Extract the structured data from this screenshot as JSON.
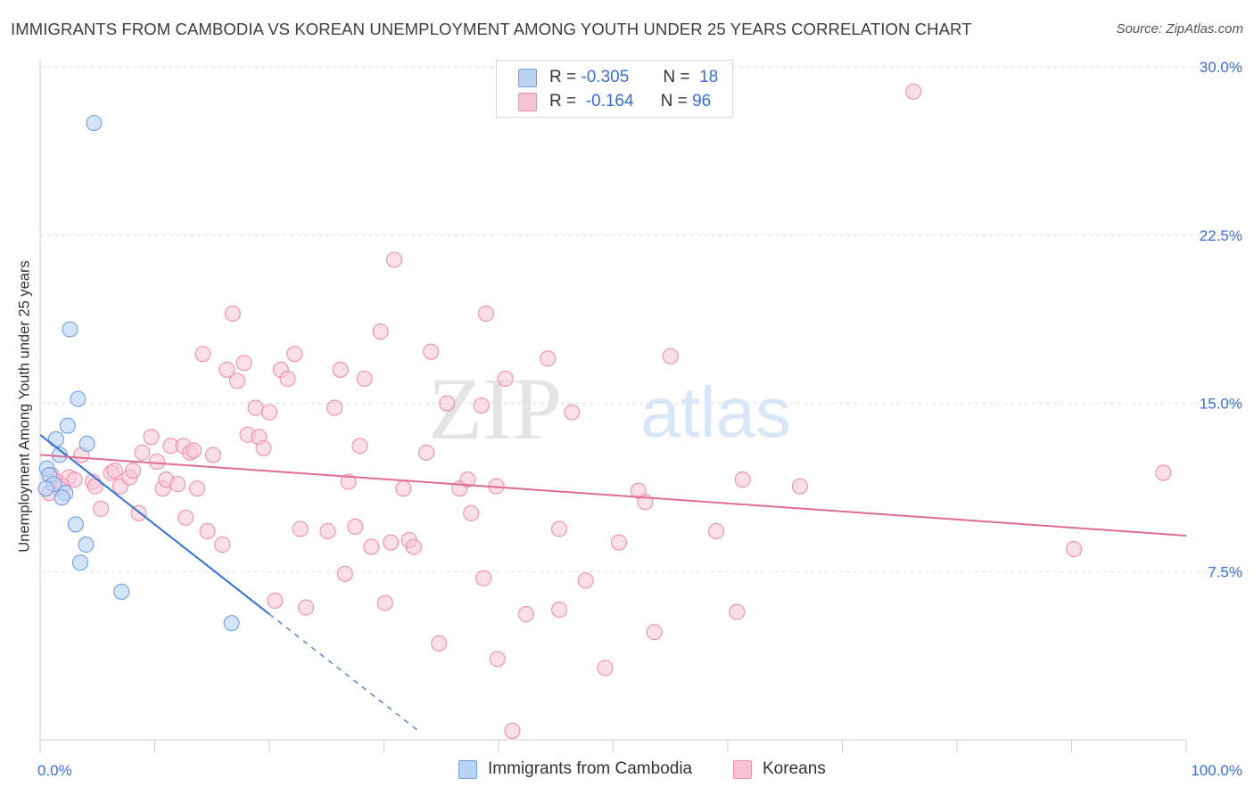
{
  "header": {
    "title": "IMMIGRANTS FROM CAMBODIA VS KOREAN UNEMPLOYMENT AMONG YOUTH UNDER 25 YEARS CORRELATION CHART",
    "source": "Source: ZipAtlas.com"
  },
  "colors": {
    "blue_fill": "#b9d3f5",
    "blue_stroke": "#6f9fe0",
    "blue_line": "#2f6fd6",
    "pink_fill": "#f8c4d4",
    "pink_stroke": "#ec8fae",
    "pink_line": "#e06b96",
    "tick_text": "#3a6fd1",
    "grid": "#dcdcdc"
  },
  "legend": {
    "r_label": "R =",
    "n_label": "N =",
    "blue_r": "-0.305",
    "blue_n": "18",
    "pink_r": "-0.164",
    "pink_n": "96"
  },
  "watermark": {
    "zip": "ZIP",
    "atlas": "atlas"
  },
  "chart_data": {
    "type": "scatter",
    "title": "IMMIGRANTS FROM CAMBODIA VS KOREAN UNEMPLOYMENT AMONG YOUTH UNDER 25 YEARS CORRELATION CHART",
    "xlabel": "",
    "ylabel": "Unemployment Among Youth under 25 years",
    "xlim": [
      0,
      100
    ],
    "ylim": [
      0,
      30.6
    ],
    "x_tick_labels": [
      "0.0%",
      "100.0%"
    ],
    "y_ticks": [
      7.5,
      15.0,
      22.5,
      30.0
    ],
    "y_tick_labels": [
      "7.5%",
      "15.0%",
      "22.5%",
      "30.0%"
    ],
    "grid": true,
    "series": [
      {
        "name": "Immigrants from Cambodia",
        "r": -0.305,
        "n": 18,
        "trend": {
          "x0": 0.0,
          "y0": 13.6,
          "x1": 20.0,
          "y1": 5.6,
          "dash_to_x": 33.0
        },
        "points": [
          [
            4.7,
            27.5
          ],
          [
            2.6,
            18.3
          ],
          [
            3.3,
            15.2
          ],
          [
            2.4,
            14.0
          ],
          [
            1.4,
            13.4
          ],
          [
            4.1,
            13.2
          ],
          [
            1.7,
            12.7
          ],
          [
            0.6,
            12.1
          ],
          [
            0.8,
            11.8
          ],
          [
            1.2,
            11.4
          ],
          [
            0.5,
            11.2
          ],
          [
            2.2,
            11.0
          ],
          [
            1.9,
            10.8
          ],
          [
            3.1,
            9.6
          ],
          [
            4.0,
            8.7
          ],
          [
            3.5,
            7.9
          ],
          [
            7.1,
            6.6
          ],
          [
            16.7,
            5.2
          ]
        ]
      },
      {
        "name": "Koreans",
        "r": -0.164,
        "n": 96,
        "trend": {
          "x0": 0.0,
          "y0": 12.7,
          "x1": 100.0,
          "y1": 9.1
        },
        "points": [
          [
            0.8,
            11.0
          ],
          [
            1.0,
            11.8
          ],
          [
            1.5,
            11.5
          ],
          [
            2.0,
            11.3
          ],
          [
            2.5,
            11.7
          ],
          [
            3.0,
            11.6
          ],
          [
            3.6,
            12.7
          ],
          [
            4.6,
            11.5
          ],
          [
            4.8,
            11.3
          ],
          [
            5.3,
            10.3
          ],
          [
            6.2,
            11.9
          ],
          [
            6.5,
            12.0
          ],
          [
            7.0,
            11.3
          ],
          [
            7.8,
            11.7
          ],
          [
            8.1,
            12.0
          ],
          [
            8.6,
            10.1
          ],
          [
            8.9,
            12.8
          ],
          [
            9.7,
            13.5
          ],
          [
            10.2,
            12.4
          ],
          [
            10.7,
            11.2
          ],
          [
            11.0,
            11.6
          ],
          [
            11.4,
            13.1
          ],
          [
            12.0,
            11.4
          ],
          [
            12.5,
            13.1
          ],
          [
            12.7,
            9.9
          ],
          [
            13.1,
            12.8
          ],
          [
            13.4,
            12.9
          ],
          [
            13.7,
            11.2
          ],
          [
            14.2,
            17.2
          ],
          [
            14.6,
            9.3
          ],
          [
            15.1,
            12.7
          ],
          [
            15.9,
            8.7
          ],
          [
            16.3,
            16.5
          ],
          [
            16.8,
            19.0
          ],
          [
            17.2,
            16.0
          ],
          [
            17.8,
            16.8
          ],
          [
            18.1,
            13.6
          ],
          [
            18.8,
            14.8
          ],
          [
            19.1,
            13.5
          ],
          [
            19.5,
            13.0
          ],
          [
            20.0,
            14.6
          ],
          [
            20.5,
            6.2
          ],
          [
            21.0,
            16.5
          ],
          [
            21.6,
            16.1
          ],
          [
            22.2,
            17.2
          ],
          [
            22.7,
            9.4
          ],
          [
            23.2,
            5.9
          ],
          [
            25.1,
            9.3
          ],
          [
            25.7,
            14.8
          ],
          [
            26.2,
            16.5
          ],
          [
            26.6,
            7.4
          ],
          [
            26.9,
            11.5
          ],
          [
            27.5,
            9.5
          ],
          [
            27.9,
            13.1
          ],
          [
            28.3,
            16.1
          ],
          [
            28.9,
            8.6
          ],
          [
            29.7,
            18.2
          ],
          [
            30.1,
            6.1
          ],
          [
            30.6,
            8.8
          ],
          [
            30.9,
            21.4
          ],
          [
            31.7,
            11.2
          ],
          [
            32.2,
            8.9
          ],
          [
            32.6,
            8.6
          ],
          [
            33.7,
            12.8
          ],
          [
            34.1,
            17.3
          ],
          [
            34.8,
            4.3
          ],
          [
            35.5,
            15.0
          ],
          [
            36.6,
            11.2
          ],
          [
            37.3,
            11.6
          ],
          [
            37.6,
            10.1
          ],
          [
            38.5,
            14.9
          ],
          [
            38.7,
            7.2
          ],
          [
            38.9,
            19.0
          ],
          [
            39.8,
            11.3
          ],
          [
            39.9,
            3.6
          ],
          [
            40.6,
            16.1
          ],
          [
            41.2,
            0.4
          ],
          [
            42.4,
            5.6
          ],
          [
            44.3,
            17.0
          ],
          [
            45.3,
            9.4
          ],
          [
            45.3,
            5.8
          ],
          [
            46.4,
            14.6
          ],
          [
            47.6,
            7.1
          ],
          [
            49.3,
            3.2
          ],
          [
            50.5,
            8.8
          ],
          [
            52.2,
            11.1
          ],
          [
            52.8,
            10.6
          ],
          [
            53.6,
            4.8
          ],
          [
            55.0,
            17.1
          ],
          [
            59.0,
            9.3
          ],
          [
            60.8,
            5.7
          ],
          [
            61.3,
            11.6
          ],
          [
            66.3,
            11.3
          ],
          [
            76.2,
            28.9
          ],
          [
            90.2,
            8.5
          ],
          [
            98.0,
            11.9
          ]
        ]
      }
    ]
  },
  "axes": {
    "ylabel": "Unemployment Among Youth under 25 years",
    "x_min_label": "0.0%",
    "x_max_label": "100.0%",
    "y_labels": [
      "7.5%",
      "15.0%",
      "22.5%",
      "30.0%"
    ]
  },
  "bottom_legend": {
    "blue_label": "Immigrants from Cambodia",
    "pink_label": "Koreans"
  }
}
